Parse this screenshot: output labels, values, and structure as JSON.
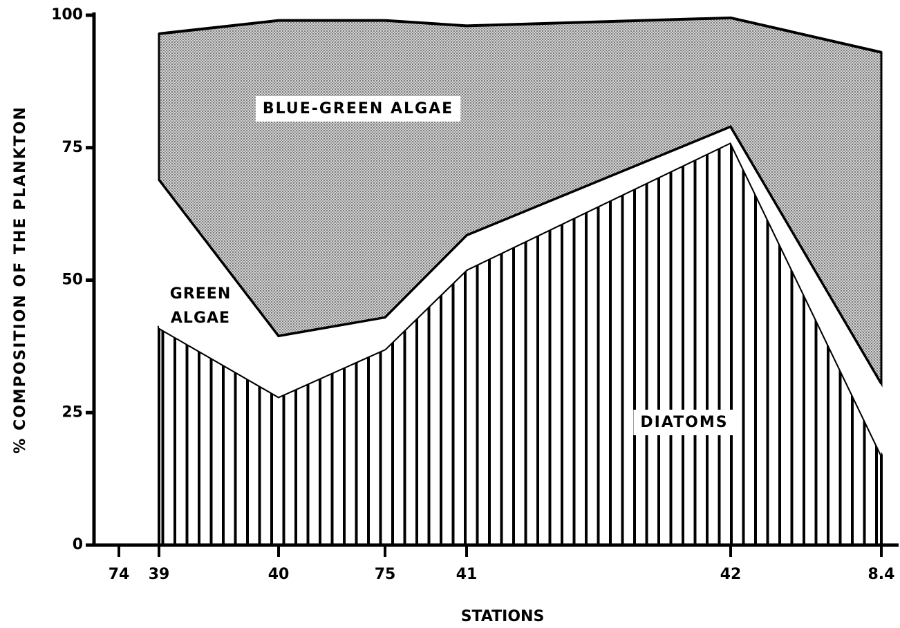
{
  "chart_data": {
    "type": "area",
    "stacked": true,
    "categories": [
      "74",
      "39",
      "40",
      "75",
      "41",
      "42",
      "8.4"
    ],
    "series": [
      {
        "name": "DIATOMS",
        "color": "#000000",
        "pattern": "vertical-lines",
        "values": [
          null,
          41,
          28,
          37,
          52,
          76,
          17
        ]
      },
      {
        "name": "GREEN ALGAE",
        "color": "#ffffff",
        "pattern": "none",
        "values": [
          null,
          28,
          11.5,
          6,
          6.5,
          3,
          13.5
        ]
      },
      {
        "name": "BLUE-GREEN ALGAE",
        "color": "#9a9a9a",
        "pattern": "stipple",
        "values": [
          null,
          27.5,
          59.5,
          56,
          39.5,
          20.5,
          62.5
        ]
      }
    ],
    "ylim": [
      0,
      100
    ],
    "yticks": [
      0,
      25,
      50,
      75,
      100
    ],
    "xlabel": "STATIONS",
    "ylabel": "% COMPOSITION OF THE PLANKTON"
  }
}
